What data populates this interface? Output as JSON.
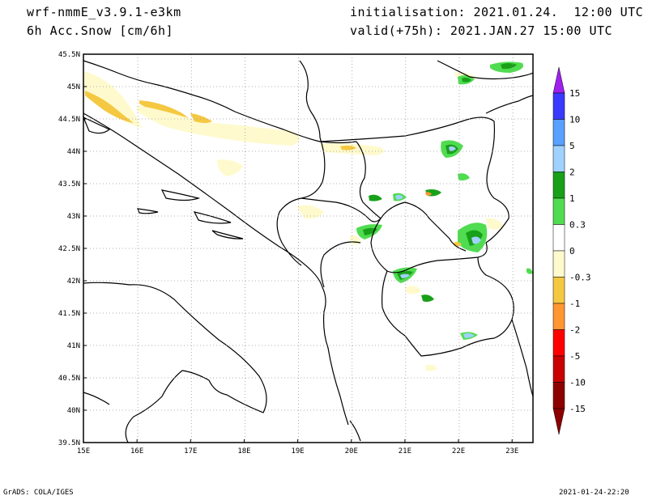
{
  "header": {
    "model": "wrf-nmmE_v3.9.1-e3km",
    "field": "6h Acc.Snow [cm/6h]",
    "init": "initialisation: 2021.01.24.  12:00 UTC",
    "valid": "valid(+75h): 2021.JAN.27 15:00 UTC"
  },
  "footer": {
    "credit": "GrADS: COLA/IGES",
    "timestamp": "2021-01-24-22:20"
  },
  "map": {
    "lat_labels": [
      "45.5N",
      "45N",
      "44.5N",
      "44N",
      "43.5N",
      "43N",
      "42.5N",
      "42N",
      "41.5N",
      "41N",
      "40.5N",
      "40N",
      "39.5N"
    ],
    "lon_labels": [
      "15E",
      "16E",
      "17E",
      "18E",
      "19E",
      "20E",
      "21E",
      "22E",
      "23E"
    ],
    "grid": "dotted"
  },
  "colorbar": {
    "labels": [
      "15",
      "10",
      "5",
      "2",
      "1",
      "0.3",
      "0",
      "-0.3",
      "-1",
      "-2",
      "-5",
      "-10",
      "-15"
    ],
    "colors": [
      "#a020f0",
      "#3a3aff",
      "#5aa0ff",
      "#a0d2ff",
      "#19a019",
      "#50dc50",
      "#ffffff",
      "#fffacd",
      "#f5c842",
      "#ff9632",
      "#ff0000",
      "#c80000",
      "#8c0000",
      "#8c0000"
    ]
  }
}
